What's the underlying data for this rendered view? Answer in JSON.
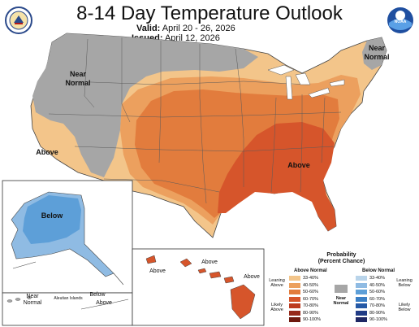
{
  "header": {
    "title": "8-14 Day Temperature Outlook",
    "valid_label": "Valid:",
    "valid_dates": "April 20 - 26, 2026",
    "issued_label": "Issued:",
    "issued_date": "April 12, 2026"
  },
  "logos": {
    "left": "department-seal-icon",
    "right": "noaa-logo-icon",
    "right_text": "NOAA"
  },
  "map_labels": {
    "west_near_normal": [
      "Near",
      "Normal"
    ],
    "northeast_near_normal": [
      "Near",
      "Normal"
    ],
    "west_coast_above": "Above",
    "southeast_above": "Above",
    "alaska_below": "Below",
    "aleutian_near_normal": [
      "Near",
      "Normal"
    ],
    "aleutian_islands": "Aleutian Islands",
    "aleutian_below": "Below",
    "aleutian_above": "Above",
    "hawaii_above_1": "Above",
    "hawaii_above_2": "Above",
    "hawaii_above_3": "Above"
  },
  "legend": {
    "title": [
      "Probability",
      "(Percent Chance)"
    ],
    "above_header": "Above Normal",
    "below_header": "Below Normal",
    "near_normal": [
      "Near",
      "Normal"
    ],
    "above_bins": [
      "33-40%",
      "40-50%",
      "50-60%",
      "60-70%",
      "70-80%",
      "80-90%",
      "90-100%"
    ],
    "below_bins": [
      "33-40%",
      "40-50%",
      "50-60%",
      "60-70%",
      "70-80%",
      "80-90%",
      "90-100%"
    ],
    "above_colors": [
      "#f3c58a",
      "#eca05e",
      "#e27c3d",
      "#d6552b",
      "#bc3a1f",
      "#96291a",
      "#6e1a0f"
    ],
    "below_colors": [
      "#b9d4ea",
      "#8fbbe3",
      "#5d9fd8",
      "#3b7fc5",
      "#2559a6",
      "#213c86",
      "#1f2764"
    ],
    "near_color": "#a6a6a6",
    "leaning_above": [
      "Leaning",
      "Above"
    ],
    "likely_above": [
      "Likely",
      "Above"
    ],
    "leaning_below": [
      "Leaning",
      "Below"
    ],
    "likely_below": [
      "Likely",
      "Below"
    ]
  }
}
